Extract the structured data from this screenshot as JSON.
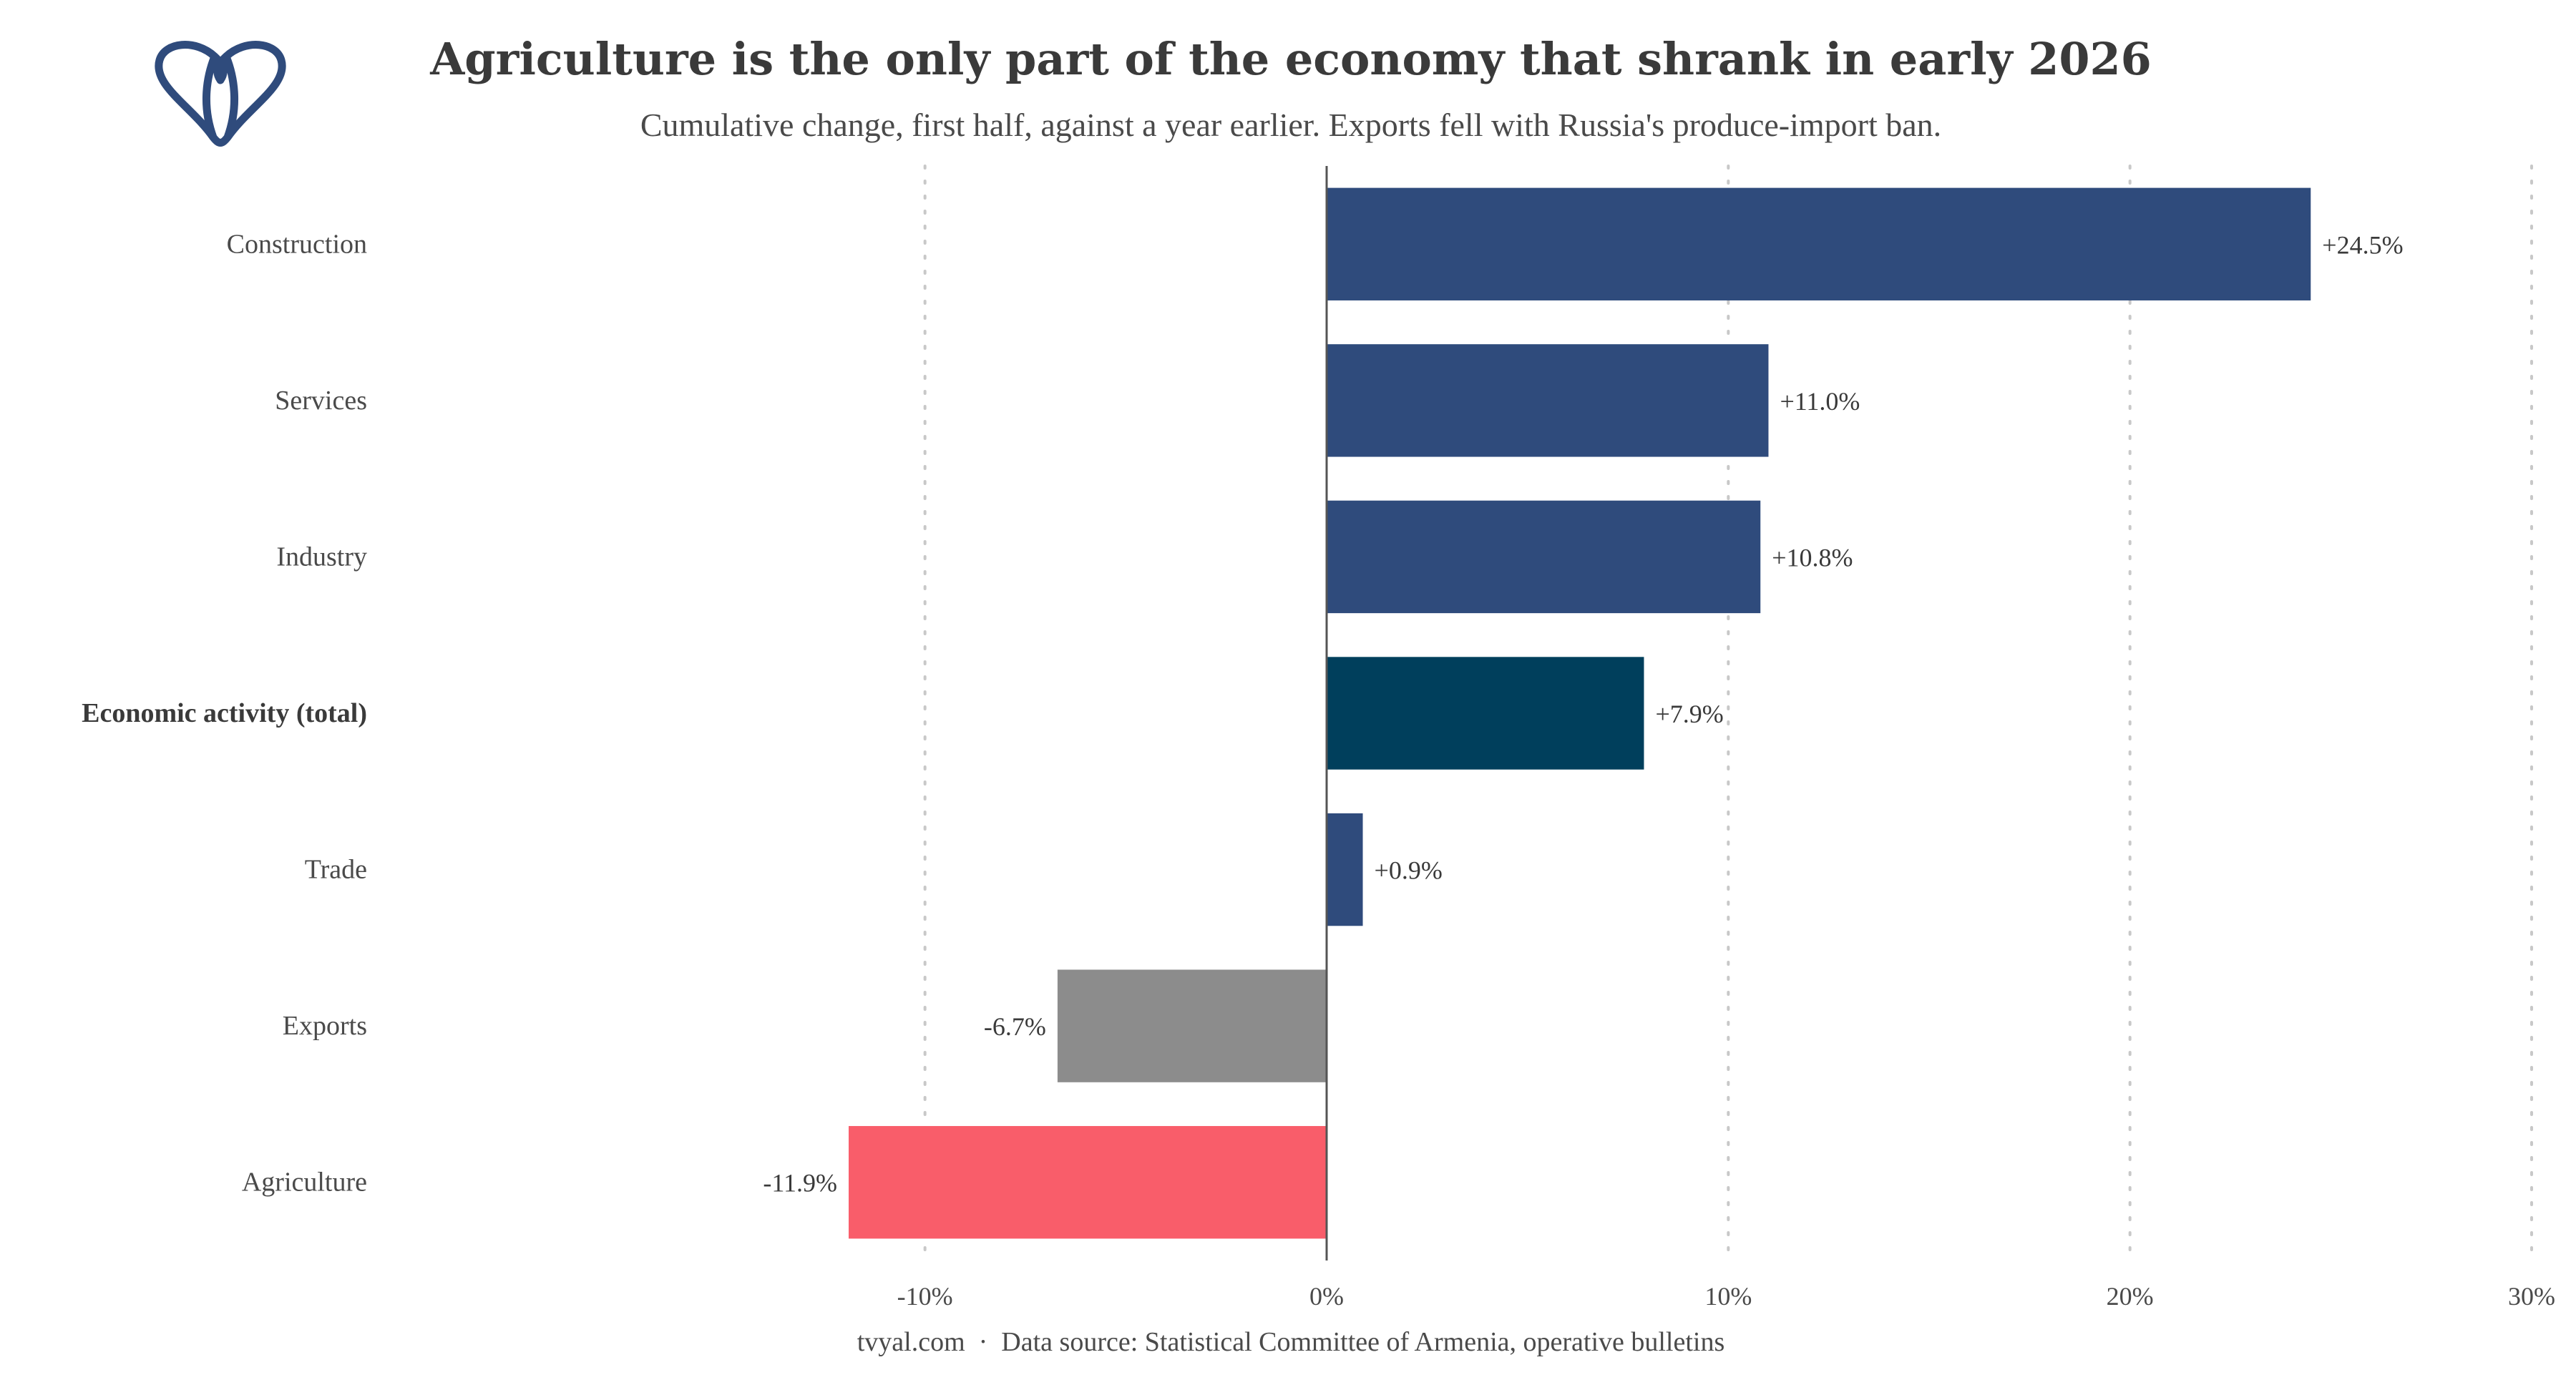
{
  "chart_data": {
    "type": "bar",
    "orientation": "horizontal",
    "title": "Agriculture is the only part of the economy that shrank in early 2026",
    "subtitle": "Cumulative change, first half, against a year earlier. Exports fell with Russia's produce-import ban.",
    "categories": [
      "Construction",
      "Services",
      "Industry",
      "Economic activity (total)",
      "Trade",
      "Exports",
      "Agriculture"
    ],
    "values": [
      24.5,
      11.0,
      10.8,
      7.9,
      0.9,
      -6.7,
      -11.9
    ],
    "data_labels": [
      "+24.5%",
      "+11.0%",
      "+10.8%",
      "+7.9%",
      "+0.9%",
      "-6.7%",
      "-11.9%"
    ],
    "highlighted_category": "Economic activity (total)",
    "bar_colors": [
      "#2f4b7c",
      "#2f4b7c",
      "#2f4b7c",
      "#003f5c",
      "#2f4b7c",
      "#8c8c8c",
      "#f95d6a"
    ],
    "x_ticks": [
      -10,
      0,
      10,
      20,
      30
    ],
    "x_tick_labels": [
      "-10%",
      "0%",
      "10%",
      "20%",
      "30%"
    ],
    "xlim": [
      -15,
      30
    ],
    "xlabel": "",
    "ylabel": "",
    "grid": "vertical dotted",
    "legend": "none",
    "caption": "tvyal.com  ·  Data source: Statistical Committee of Armenia, operative bulletins",
    "logo_icon": "tvyal-logo-icon",
    "colors": {
      "title": "#3a3a3a",
      "text": "#4a4a4a",
      "grid": "#c8c8c8",
      "zero_line": "#555555",
      "logo": "#2f4b7c"
    }
  }
}
